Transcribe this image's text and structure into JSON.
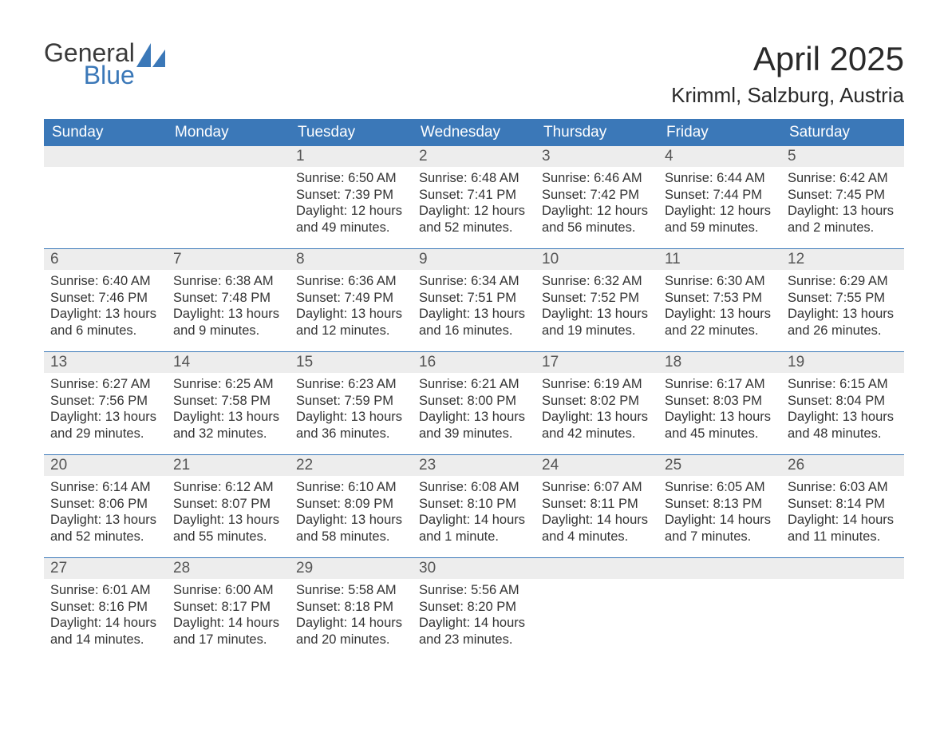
{
  "logo": {
    "word1": "General",
    "word2": "Blue"
  },
  "title": "April 2025",
  "location": "Krimml, Salzburg, Austria",
  "colors": {
    "header_bg": "#3b78b8",
    "header_text": "#ffffff",
    "daynum_bg": "#ededed",
    "daynum_text": "#555555",
    "body_text": "#333333",
    "logo_blue": "#3b78b8",
    "rule": "#3b78b8",
    "page_bg": "#ffffff"
  },
  "typography": {
    "title_fontsize": 42,
    "location_fontsize": 26,
    "dayheader_fontsize": 19,
    "daynum_fontsize": 19,
    "body_fontsize": 16.5
  },
  "day_names": [
    "Sunday",
    "Monday",
    "Tuesday",
    "Wednesday",
    "Thursday",
    "Friday",
    "Saturday"
  ],
  "weeks": [
    [
      {
        "day": "",
        "sunrise": "",
        "sunset": "",
        "daylight1": "",
        "daylight2": ""
      },
      {
        "day": "",
        "sunrise": "",
        "sunset": "",
        "daylight1": "",
        "daylight2": ""
      },
      {
        "day": "1",
        "sunrise": "Sunrise: 6:50 AM",
        "sunset": "Sunset: 7:39 PM",
        "daylight1": "Daylight: 12 hours",
        "daylight2": "and 49 minutes."
      },
      {
        "day": "2",
        "sunrise": "Sunrise: 6:48 AM",
        "sunset": "Sunset: 7:41 PM",
        "daylight1": "Daylight: 12 hours",
        "daylight2": "and 52 minutes."
      },
      {
        "day": "3",
        "sunrise": "Sunrise: 6:46 AM",
        "sunset": "Sunset: 7:42 PM",
        "daylight1": "Daylight: 12 hours",
        "daylight2": "and 56 minutes."
      },
      {
        "day": "4",
        "sunrise": "Sunrise: 6:44 AM",
        "sunset": "Sunset: 7:44 PM",
        "daylight1": "Daylight: 12 hours",
        "daylight2": "and 59 minutes."
      },
      {
        "day": "5",
        "sunrise": "Sunrise: 6:42 AM",
        "sunset": "Sunset: 7:45 PM",
        "daylight1": "Daylight: 13 hours",
        "daylight2": "and 2 minutes."
      }
    ],
    [
      {
        "day": "6",
        "sunrise": "Sunrise: 6:40 AM",
        "sunset": "Sunset: 7:46 PM",
        "daylight1": "Daylight: 13 hours",
        "daylight2": "and 6 minutes."
      },
      {
        "day": "7",
        "sunrise": "Sunrise: 6:38 AM",
        "sunset": "Sunset: 7:48 PM",
        "daylight1": "Daylight: 13 hours",
        "daylight2": "and 9 minutes."
      },
      {
        "day": "8",
        "sunrise": "Sunrise: 6:36 AM",
        "sunset": "Sunset: 7:49 PM",
        "daylight1": "Daylight: 13 hours",
        "daylight2": "and 12 minutes."
      },
      {
        "day": "9",
        "sunrise": "Sunrise: 6:34 AM",
        "sunset": "Sunset: 7:51 PM",
        "daylight1": "Daylight: 13 hours",
        "daylight2": "and 16 minutes."
      },
      {
        "day": "10",
        "sunrise": "Sunrise: 6:32 AM",
        "sunset": "Sunset: 7:52 PM",
        "daylight1": "Daylight: 13 hours",
        "daylight2": "and 19 minutes."
      },
      {
        "day": "11",
        "sunrise": "Sunrise: 6:30 AM",
        "sunset": "Sunset: 7:53 PM",
        "daylight1": "Daylight: 13 hours",
        "daylight2": "and 22 minutes."
      },
      {
        "day": "12",
        "sunrise": "Sunrise: 6:29 AM",
        "sunset": "Sunset: 7:55 PM",
        "daylight1": "Daylight: 13 hours",
        "daylight2": "and 26 minutes."
      }
    ],
    [
      {
        "day": "13",
        "sunrise": "Sunrise: 6:27 AM",
        "sunset": "Sunset: 7:56 PM",
        "daylight1": "Daylight: 13 hours",
        "daylight2": "and 29 minutes."
      },
      {
        "day": "14",
        "sunrise": "Sunrise: 6:25 AM",
        "sunset": "Sunset: 7:58 PM",
        "daylight1": "Daylight: 13 hours",
        "daylight2": "and 32 minutes."
      },
      {
        "day": "15",
        "sunrise": "Sunrise: 6:23 AM",
        "sunset": "Sunset: 7:59 PM",
        "daylight1": "Daylight: 13 hours",
        "daylight2": "and 36 minutes."
      },
      {
        "day": "16",
        "sunrise": "Sunrise: 6:21 AM",
        "sunset": "Sunset: 8:00 PM",
        "daylight1": "Daylight: 13 hours",
        "daylight2": "and 39 minutes."
      },
      {
        "day": "17",
        "sunrise": "Sunrise: 6:19 AM",
        "sunset": "Sunset: 8:02 PM",
        "daylight1": "Daylight: 13 hours",
        "daylight2": "and 42 minutes."
      },
      {
        "day": "18",
        "sunrise": "Sunrise: 6:17 AM",
        "sunset": "Sunset: 8:03 PM",
        "daylight1": "Daylight: 13 hours",
        "daylight2": "and 45 minutes."
      },
      {
        "day": "19",
        "sunrise": "Sunrise: 6:15 AM",
        "sunset": "Sunset: 8:04 PM",
        "daylight1": "Daylight: 13 hours",
        "daylight2": "and 48 minutes."
      }
    ],
    [
      {
        "day": "20",
        "sunrise": "Sunrise: 6:14 AM",
        "sunset": "Sunset: 8:06 PM",
        "daylight1": "Daylight: 13 hours",
        "daylight2": "and 52 minutes."
      },
      {
        "day": "21",
        "sunrise": "Sunrise: 6:12 AM",
        "sunset": "Sunset: 8:07 PM",
        "daylight1": "Daylight: 13 hours",
        "daylight2": "and 55 minutes."
      },
      {
        "day": "22",
        "sunrise": "Sunrise: 6:10 AM",
        "sunset": "Sunset: 8:09 PM",
        "daylight1": "Daylight: 13 hours",
        "daylight2": "and 58 minutes."
      },
      {
        "day": "23",
        "sunrise": "Sunrise: 6:08 AM",
        "sunset": "Sunset: 8:10 PM",
        "daylight1": "Daylight: 14 hours",
        "daylight2": "and 1 minute."
      },
      {
        "day": "24",
        "sunrise": "Sunrise: 6:07 AM",
        "sunset": "Sunset: 8:11 PM",
        "daylight1": "Daylight: 14 hours",
        "daylight2": "and 4 minutes."
      },
      {
        "day": "25",
        "sunrise": "Sunrise: 6:05 AM",
        "sunset": "Sunset: 8:13 PM",
        "daylight1": "Daylight: 14 hours",
        "daylight2": "and 7 minutes."
      },
      {
        "day": "26",
        "sunrise": "Sunrise: 6:03 AM",
        "sunset": "Sunset: 8:14 PM",
        "daylight1": "Daylight: 14 hours",
        "daylight2": "and 11 minutes."
      }
    ],
    [
      {
        "day": "27",
        "sunrise": "Sunrise: 6:01 AM",
        "sunset": "Sunset: 8:16 PM",
        "daylight1": "Daylight: 14 hours",
        "daylight2": "and 14 minutes."
      },
      {
        "day": "28",
        "sunrise": "Sunrise: 6:00 AM",
        "sunset": "Sunset: 8:17 PM",
        "daylight1": "Daylight: 14 hours",
        "daylight2": "and 17 minutes."
      },
      {
        "day": "29",
        "sunrise": "Sunrise: 5:58 AM",
        "sunset": "Sunset: 8:18 PM",
        "daylight1": "Daylight: 14 hours",
        "daylight2": "and 20 minutes."
      },
      {
        "day": "30",
        "sunrise": "Sunrise: 5:56 AM",
        "sunset": "Sunset: 8:20 PM",
        "daylight1": "Daylight: 14 hours",
        "daylight2": "and 23 minutes."
      },
      {
        "day": "",
        "sunrise": "",
        "sunset": "",
        "daylight1": "",
        "daylight2": ""
      },
      {
        "day": "",
        "sunrise": "",
        "sunset": "",
        "daylight1": "",
        "daylight2": ""
      },
      {
        "day": "",
        "sunrise": "",
        "sunset": "",
        "daylight1": "",
        "daylight2": ""
      }
    ]
  ]
}
